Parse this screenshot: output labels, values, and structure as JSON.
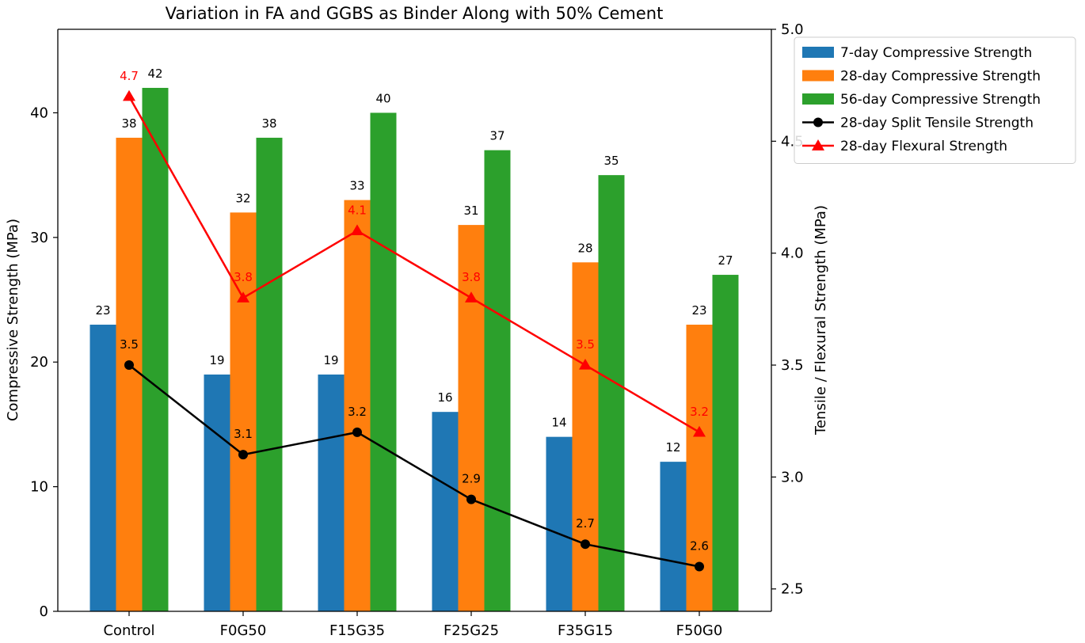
{
  "chart_data": {
    "type": "bar",
    "title": "Variation in FA and GGBS as Binder Along with 50% Cement",
    "categories": [
      "Control",
      "F0G50",
      "F15G35",
      "F25G25",
      "F35G15",
      "F50G0"
    ],
    "ylabel": "Compressive Strength (MPa)",
    "y2label": "Tensile / Flexural Strength (MPa)",
    "ylim": [
      0,
      46.7
    ],
    "y2lim": [
      2.4,
      5.0
    ],
    "yticks": [
      0,
      10,
      20,
      30,
      40
    ],
    "y2ticks": [
      2.5,
      3.0,
      3.5,
      4.0,
      4.5,
      5.0
    ],
    "legend_position": "outside top-right",
    "grid": false,
    "series": [
      {
        "name": "7-day Compressive Strength",
        "type": "bar",
        "axis": "left",
        "color": "#1f77b4",
        "values": [
          23,
          19,
          19,
          16,
          14,
          12
        ]
      },
      {
        "name": "28-day Compressive Strength",
        "type": "bar",
        "axis": "left",
        "color": "#ff7f0e",
        "values": [
          38,
          32,
          33,
          31,
          28,
          23
        ]
      },
      {
        "name": "56-day Compressive Strength",
        "type": "bar",
        "axis": "left",
        "color": "#2ca02c",
        "values": [
          42,
          38,
          40,
          37,
          35,
          27
        ]
      },
      {
        "name": "28-day Split Tensile Strength",
        "type": "line",
        "axis": "right",
        "color": "#000000",
        "marker": "circle",
        "values": [
          3.5,
          3.1,
          3.2,
          2.9,
          2.7,
          2.6
        ]
      },
      {
        "name": "28-day Flexural Strength",
        "type": "line",
        "axis": "right",
        "color": "#ff0000",
        "marker": "triangle",
        "values": [
          4.7,
          3.8,
          4.1,
          3.8,
          3.5,
          3.2
        ]
      }
    ]
  }
}
